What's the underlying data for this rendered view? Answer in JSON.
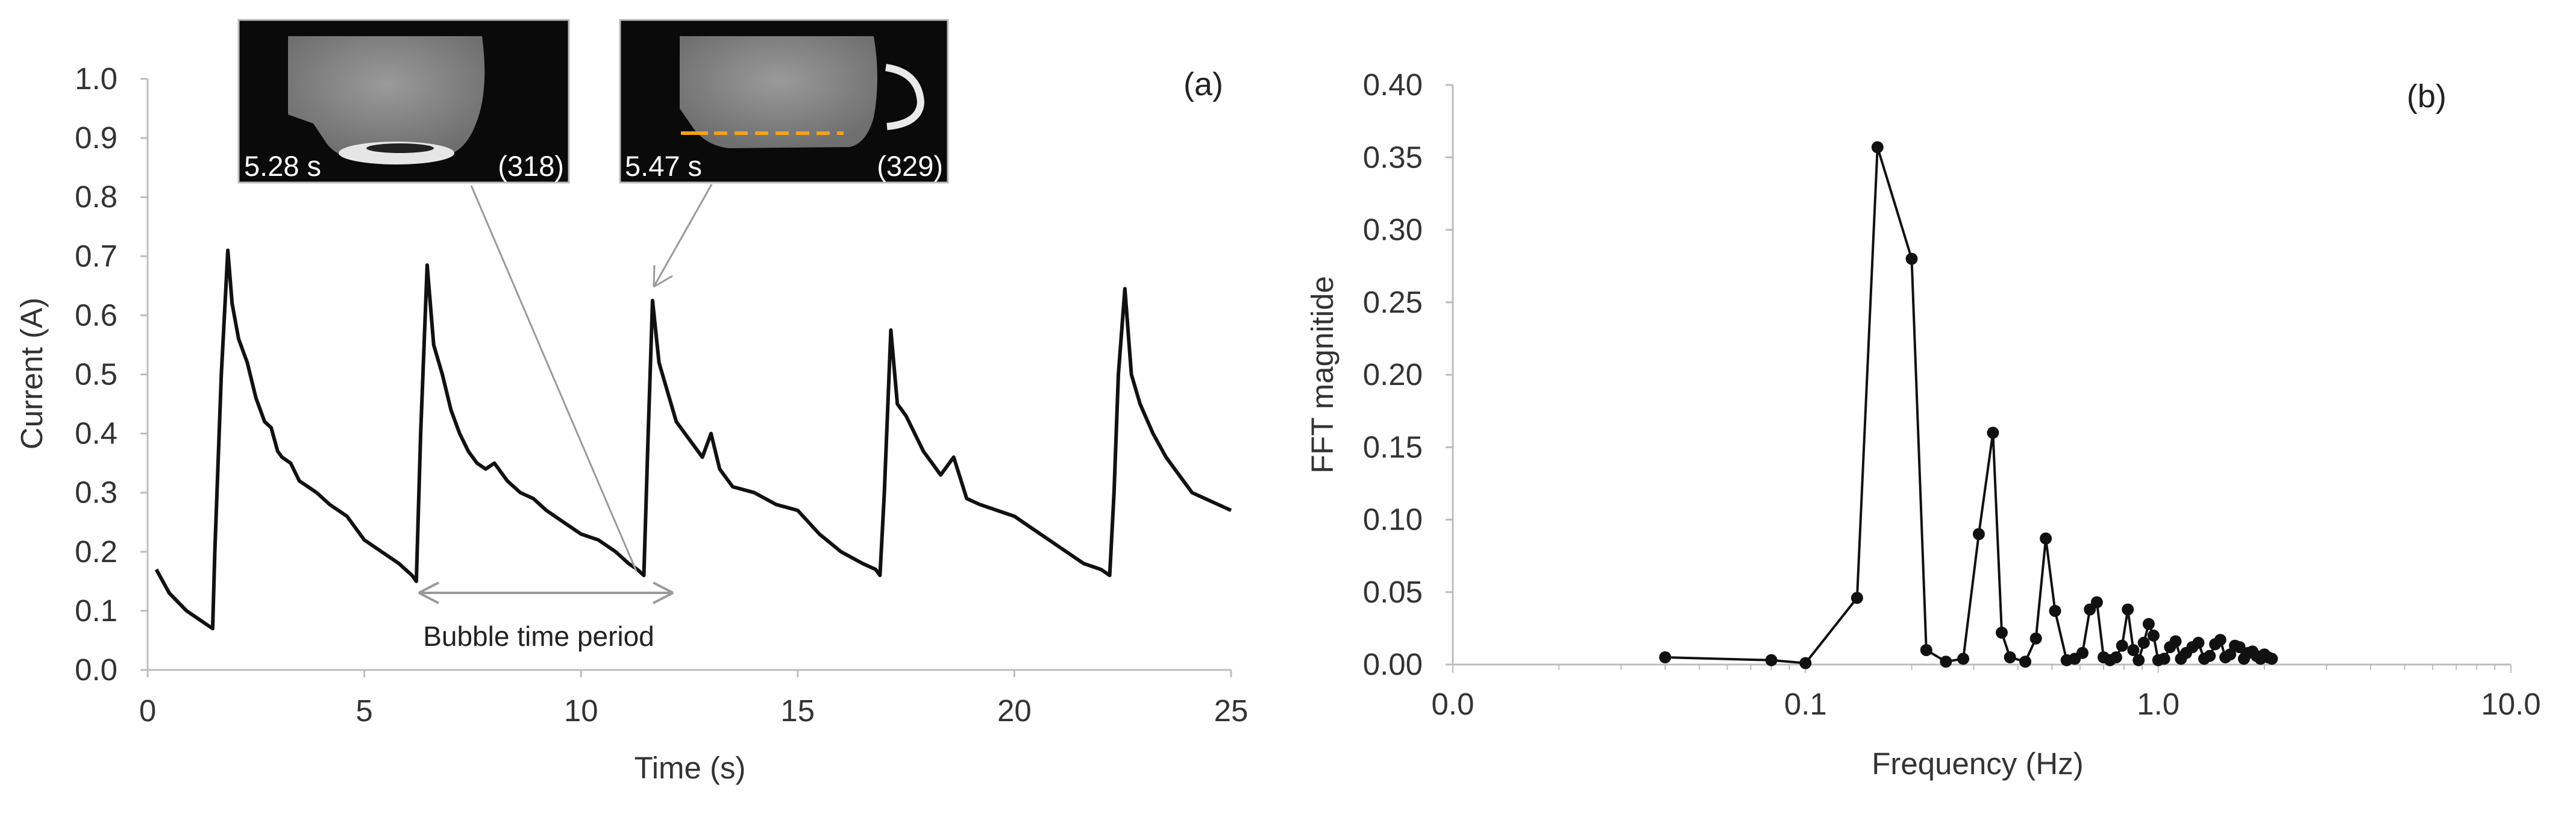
{
  "chart_data": [
    {
      "type": "line",
      "panel_label": "(a)",
      "title": "",
      "xlabel": "Time (s)",
      "ylabel": "Current  (A)",
      "xlim": [
        0,
        25
      ],
      "ylim": [
        0,
        1.0
      ],
      "xticks": [
        "0",
        "5",
        "10",
        "15",
        "20",
        "25"
      ],
      "yticks": [
        "0.0",
        "0.1",
        "0.2",
        "0.3",
        "0.4",
        "0.5",
        "0.6",
        "0.7",
        "0.8",
        "0.9",
        "1.0"
      ],
      "grid": false,
      "legend": "none",
      "series": [
        {
          "x": [
            0.2,
            0.5,
            0.9,
            1.2,
            1.5,
            1.55,
            1.7,
            1.85,
            1.95,
            2.1,
            2.3,
            2.5,
            2.7,
            2.85,
            3.0,
            3.1,
            3.3,
            3.5,
            3.7,
            3.9,
            4.2,
            4.6,
            5.0,
            5.4,
            5.8,
            6.1,
            6.2,
            6.3,
            6.45,
            6.6,
            6.8,
            7.0,
            7.2,
            7.4,
            7.6,
            7.8,
            8.0,
            8.3,
            8.6,
            8.9,
            9.2,
            9.6,
            10.0,
            10.4,
            10.8,
            11.1,
            11.3,
            11.45,
            11.55,
            11.65,
            11.8,
            12.0,
            12.2,
            12.4,
            12.6,
            12.8,
            13.0,
            13.2,
            13.5,
            14.0,
            14.5,
            15.0,
            15.5,
            16.0,
            16.5,
            16.8,
            16.9,
            17.0,
            17.15,
            17.3,
            17.5,
            17.7,
            17.9,
            18.1,
            18.3,
            18.6,
            18.9,
            19.2,
            19.6,
            20.0,
            20.4,
            20.8,
            21.2,
            21.6,
            22.0,
            22.2,
            22.3,
            22.4,
            22.55,
            22.7,
            22.9,
            23.2,
            23.5,
            23.8,
            24.1,
            24.4,
            24.7,
            25.0
          ],
          "y": [
            0.17,
            0.13,
            0.1,
            0.085,
            0.07,
            0.2,
            0.5,
            0.71,
            0.62,
            0.56,
            0.52,
            0.46,
            0.42,
            0.41,
            0.37,
            0.36,
            0.35,
            0.32,
            0.31,
            0.3,
            0.28,
            0.26,
            0.22,
            0.2,
            0.18,
            0.16,
            0.15,
            0.4,
            0.685,
            0.55,
            0.5,
            0.44,
            0.4,
            0.37,
            0.35,
            0.34,
            0.35,
            0.32,
            0.3,
            0.29,
            0.27,
            0.25,
            0.23,
            0.22,
            0.2,
            0.18,
            0.17,
            0.16,
            0.4,
            0.625,
            0.52,
            0.47,
            0.42,
            0.4,
            0.38,
            0.36,
            0.4,
            0.34,
            0.31,
            0.3,
            0.28,
            0.27,
            0.23,
            0.2,
            0.18,
            0.17,
            0.16,
            0.3,
            0.575,
            0.45,
            0.43,
            0.4,
            0.37,
            0.35,
            0.33,
            0.36,
            0.29,
            0.28,
            0.27,
            0.26,
            0.24,
            0.22,
            0.2,
            0.18,
            0.17,
            0.16,
            0.3,
            0.5,
            0.645,
            0.5,
            0.45,
            0.4,
            0.36,
            0.33,
            0.3,
            0.29,
            0.28,
            0.27
          ]
        }
      ],
      "annotations": {
        "bubble_label": "Bubble time period",
        "insets": [
          {
            "time": "5.28 s",
            "frame": "(318)"
          },
          {
            "time": "5.47 s",
            "frame": "(329)"
          }
        ]
      }
    },
    {
      "type": "scatter",
      "panel_label": "(b)",
      "title": "",
      "xlabel": "Frequency (Hz)",
      "ylabel": "FFT magnitide",
      "xscale": "log",
      "xlim": [
        0.01,
        10
      ],
      "ylim": [
        0,
        0.4
      ],
      "xticks": [
        "0.0",
        "0.1",
        "1.0",
        "10.0"
      ],
      "yticks": [
        "0.00",
        "0.05",
        "0.10",
        "0.15",
        "0.20",
        "0.25",
        "0.30",
        "0.35",
        "0.40"
      ],
      "grid": false,
      "legend": "none",
      "series": [
        {
          "x": [
            0.04,
            0.08,
            0.1,
            0.14,
            0.16,
            0.2,
            0.22,
            0.25,
            0.28,
            0.31,
            0.34,
            0.36,
            0.38,
            0.42,
            0.45,
            0.48,
            0.51,
            0.55,
            0.58,
            0.61,
            0.64,
            0.67,
            0.7,
            0.73,
            0.76,
            0.79,
            0.82,
            0.85,
            0.88,
            0.91,
            0.94,
            0.97,
            1.0,
            1.04,
            1.08,
            1.12,
            1.16,
            1.2,
            1.25,
            1.3,
            1.35,
            1.4,
            1.45,
            1.5,
            1.55,
            1.6,
            1.65,
            1.7,
            1.75,
            1.8,
            1.85,
            1.9,
            1.95,
            2.0,
            2.05,
            2.1
          ],
          "y": [
            0.005,
            0.003,
            0.001,
            0.046,
            0.357,
            0.28,
            0.01,
            0.002,
            0.004,
            0.09,
            0.16,
            0.022,
            0.005,
            0.002,
            0.018,
            0.087,
            0.037,
            0.003,
            0.004,
            0.008,
            0.038,
            0.043,
            0.005,
            0.003,
            0.005,
            0.013,
            0.038,
            0.01,
            0.003,
            0.015,
            0.028,
            0.02,
            0.003,
            0.004,
            0.012,
            0.016,
            0.004,
            0.008,
            0.012,
            0.015,
            0.004,
            0.006,
            0.014,
            0.017,
            0.005,
            0.007,
            0.013,
            0.012,
            0.004,
            0.008,
            0.009,
            0.006,
            0.004,
            0.007,
            0.005,
            0.004
          ]
        }
      ]
    }
  ]
}
